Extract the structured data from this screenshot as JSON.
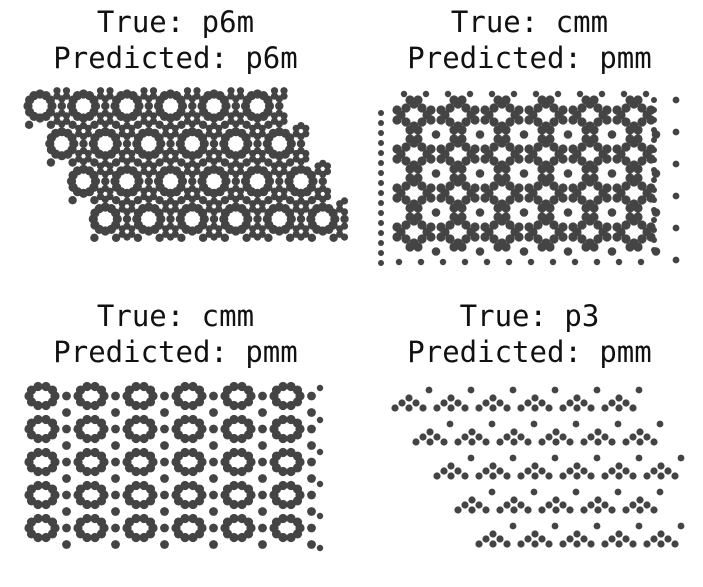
{
  "dot_color": "#444444",
  "panels": [
    {
      "true_label": "True: p6m",
      "predicted_label": "Predicted: p6m"
    },
    {
      "true_label": "True: cmm",
      "predicted_label": "Predicted: pmm"
    },
    {
      "true_label": "True: cmm",
      "predicted_label": "Predicted: pmm"
    },
    {
      "true_label": "True: p3",
      "predicted_label": "Predicted: pmm"
    }
  ]
}
